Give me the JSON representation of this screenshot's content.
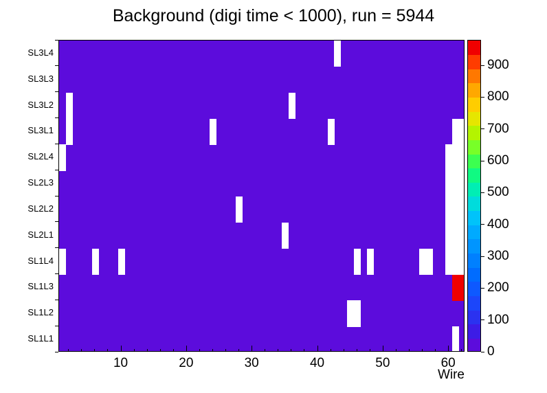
{
  "canvas": {
    "background": "#ffffff",
    "frame_color": "#000000",
    "text_color": "#000000"
  },
  "chart_data": {
    "type": "heatmap",
    "title": "Background (digi time < 1000), run = 5944",
    "xlabel": "Wire",
    "x_min": 1,
    "x_max": 62,
    "x_ticks": [
      10,
      20,
      30,
      40,
      50,
      60
    ],
    "x_minor_tick_step": 2,
    "rows_top_to_bottom": [
      "SL3L4",
      "SL3L3",
      "SL3L2",
      "SL3L1",
      "SL2L4",
      "SL2L3",
      "SL2L2",
      "SL2L1",
      "SL1L4",
      "SL1L3",
      "SL1L2",
      "SL1L1"
    ],
    "background_value": 10,
    "zmin": 0,
    "zmax": 980,
    "colorbar_ticks": [
      0,
      100,
      200,
      300,
      400,
      500,
      600,
      700,
      800,
      900
    ],
    "palette": [
      "#5c0cdc",
      "#3d1ce6",
      "#2b32f0",
      "#1c46fa",
      "#0e59ff",
      "#006cff",
      "#0080ff",
      "#0095ff",
      "#00aaff",
      "#00c3fa",
      "#00dcdc",
      "#00eeb4",
      "#10fa82",
      "#3cff50",
      "#78ff28",
      "#b4f400",
      "#e6e600",
      "#ffcd00",
      "#ffa800",
      "#ff7800",
      "#ff3c00",
      "#f00000"
    ],
    "empty_cells": [
      {
        "row": "SL3L4",
        "wires": [
          43
        ]
      },
      {
        "row": "SL3L2",
        "wires": [
          2,
          36
        ]
      },
      {
        "row": "SL3L1",
        "wires": [
          2,
          24,
          42,
          61,
          62
        ]
      },
      {
        "row": "SL2L4",
        "wires": [
          1,
          60,
          61,
          62
        ]
      },
      {
        "row": "SL2L3",
        "wires": [
          60,
          61,
          62
        ]
      },
      {
        "row": "SL2L2",
        "wires": [
          28,
          60,
          61,
          62
        ]
      },
      {
        "row": "SL2L1",
        "wires": [
          35,
          60,
          61,
          62
        ]
      },
      {
        "row": "SL1L4",
        "wires": [
          1,
          6,
          10,
          46,
          48,
          56,
          57,
          60,
          61,
          62
        ]
      },
      {
        "row": "SL1L2",
        "wires": [
          45,
          46
        ]
      },
      {
        "row": "SL1L1",
        "wires": [
          61
        ]
      }
    ],
    "hot_cells": [
      {
        "row": "SL1L3",
        "wires": [
          61,
          62
        ],
        "value": 960
      }
    ]
  }
}
